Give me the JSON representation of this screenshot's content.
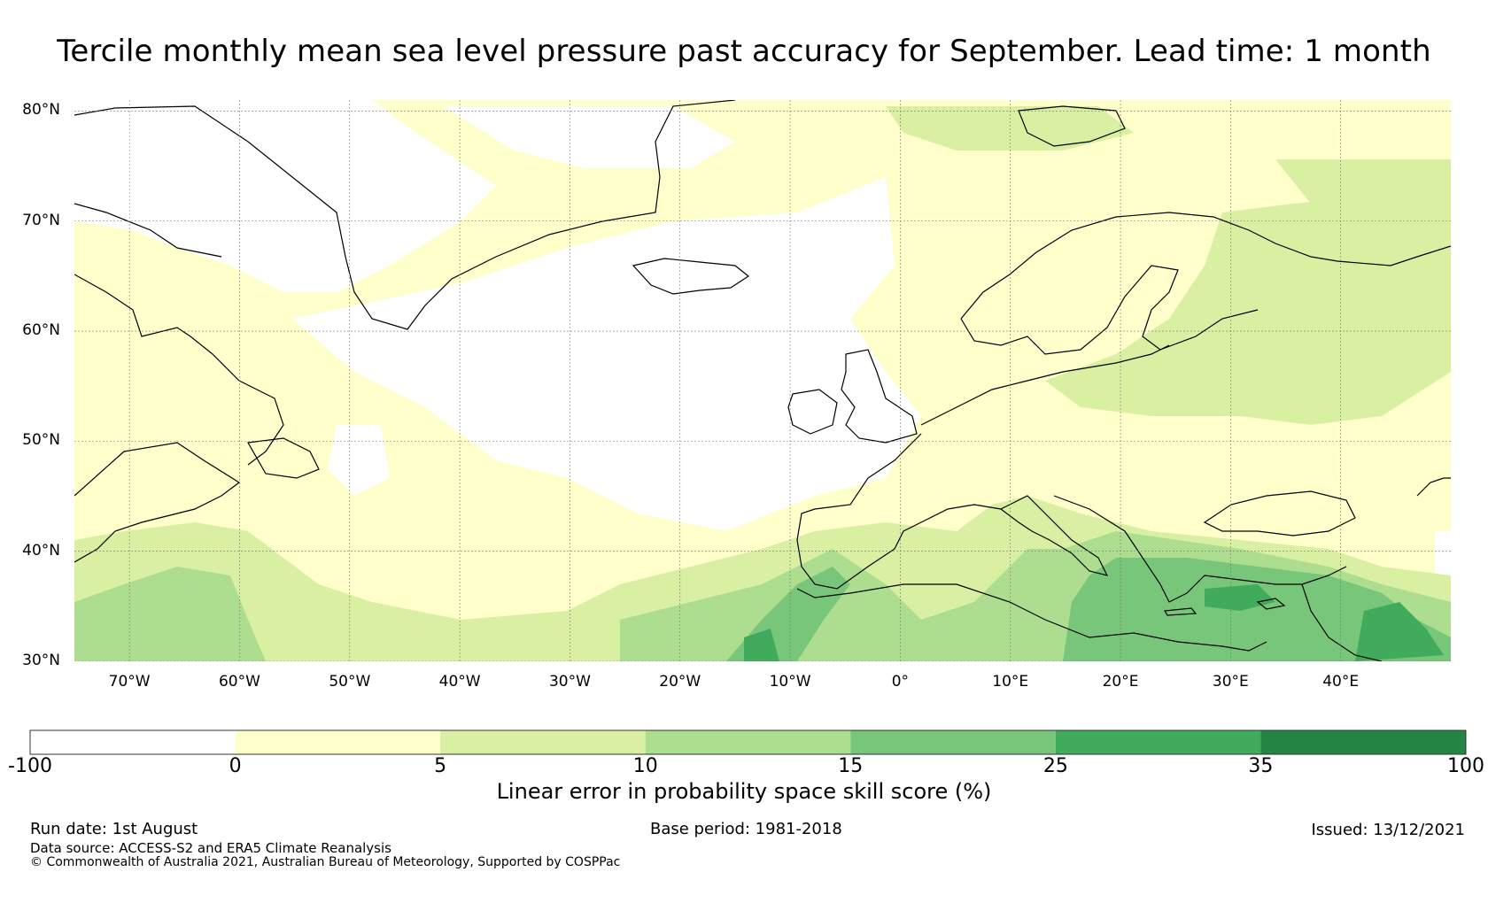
{
  "title": "Tercile monthly mean sea level pressure past accuracy for September. Lead time: 1 month",
  "map": {
    "lat_labels": [
      "80°N",
      "70°N",
      "60°N",
      "50°N",
      "40°N",
      "30°N"
    ],
    "lon_labels": [
      "70°W",
      "60°W",
      "50°W",
      "40°W",
      "30°W",
      "20°W",
      "10°W",
      "0°",
      "10°E",
      "20°E",
      "30°E",
      "40°E"
    ],
    "lon_range": [
      -75,
      50
    ],
    "lat_range": [
      30,
      81
    ]
  },
  "colorbar": {
    "ticks": [
      "-100",
      "0",
      "5",
      "10",
      "15",
      "25",
      "35",
      "100"
    ],
    "colors": [
      "#ffffff",
      "#ffffcc",
      "#d9f0a3",
      "#addd8e",
      "#78c679",
      "#41ab5d",
      "#238443"
    ],
    "label": "Linear error in probability space skill score (%)"
  },
  "footer": {
    "run_date": "Run date: 1st August",
    "base_period": "Base period: 1981-2018",
    "issued": "Issued: 13/12/2021",
    "data_source": "Data source: ACCESS-S2 and ERA5 Climate Reanalysis",
    "copyright": "© Commonwealth of Australia 2021, Australian Bureau of Meteorology, Supported by COSPPac"
  }
}
